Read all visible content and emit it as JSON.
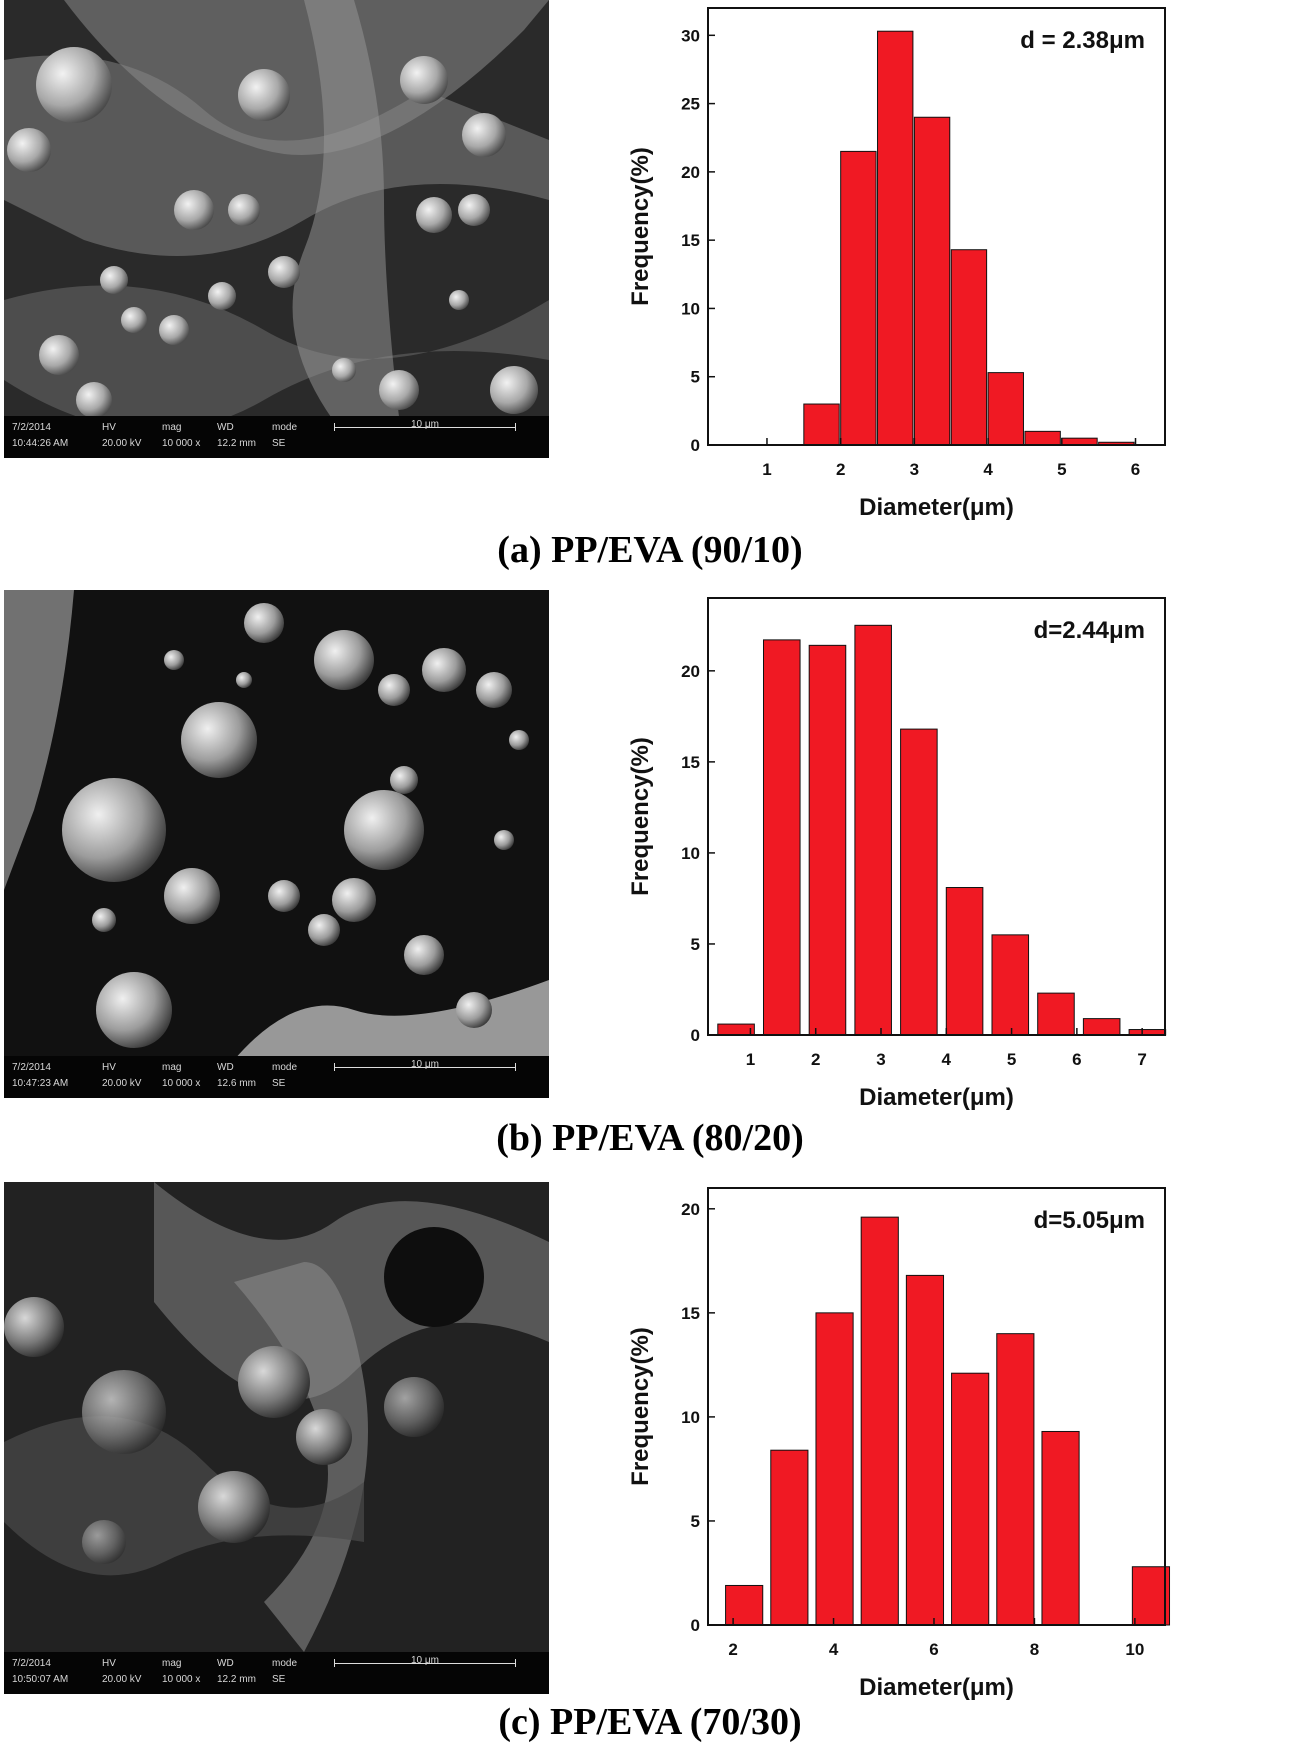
{
  "panels": [
    {
      "caption": "(a) PP/EVA (90/10)",
      "sem": {
        "row1": [
          "7/2/2014",
          "HV",
          "mag",
          "WD",
          "mode"
        ],
        "row2": [
          "10:44:26 AM",
          "20.00 kV",
          "10 000 x",
          "12.2 mm",
          "SE"
        ],
        "scale_label": "10 μm"
      }
    },
    {
      "caption": "(b) PP/EVA (80/20)",
      "sem": {
        "row1": [
          "7/2/2014",
          "HV",
          "mag",
          "WD",
          "mode"
        ],
        "row2": [
          "10:47:23 AM",
          "20.00 kV",
          "10 000 x",
          "12.6 mm",
          "SE"
        ],
        "scale_label": "10 μm"
      }
    },
    {
      "caption": "(c) PP/EVA (70/30)",
      "sem": {
        "row1": [
          "7/2/2014",
          "HV",
          "mag",
          "WD",
          "mode"
        ],
        "row2": [
          "10:50:07 AM",
          "20.00 kV",
          "10 000 x",
          "12.2 mm",
          "SE"
        ],
        "scale_label": "10 μm"
      }
    }
  ],
  "chart_data": [
    {
      "type": "bar",
      "annotation": "d = 2.38μm",
      "xlabel": "Diameter(μm)",
      "ylabel": "Frequency(%)",
      "xlim": [
        0.2,
        6.4
      ],
      "ylim": [
        0,
        32
      ],
      "xticks": [
        1,
        2,
        3,
        4,
        5,
        6
      ],
      "yticks": [
        0,
        5,
        10,
        15,
        20,
        25,
        30
      ],
      "bar_width": 0.48,
      "bar_color": "#f01923",
      "x": [
        1.0,
        1.5,
        2.0,
        2.5,
        3.0,
        3.5,
        4.0,
        4.5,
        5.0,
        5.5
      ],
      "values": [
        0,
        3.0,
        21.5,
        30.3,
        24.0,
        14.3,
        5.3,
        1.0,
        0.5,
        0.2
      ]
    },
    {
      "type": "bar",
      "annotation": "d=2.44μm",
      "xlabel": "Diameter(μm)",
      "ylabel": "Frequency(%)",
      "xlim": [
        0.35,
        7.35
      ],
      "ylim": [
        0,
        24
      ],
      "xticks": [
        1,
        2,
        3,
        4,
        5,
        6,
        7
      ],
      "yticks": [
        0,
        5,
        10,
        15,
        20
      ],
      "bar_width": 0.56,
      "bar_color": "#f01923",
      "x": [
        0.5,
        1.2,
        1.9,
        2.6,
        3.3,
        4.0,
        4.7,
        5.4,
        6.1,
        6.8
      ],
      "values": [
        0.6,
        21.7,
        21.4,
        22.5,
        16.8,
        8.1,
        5.5,
        2.3,
        0.9,
        0.3
      ]
    },
    {
      "type": "bar",
      "annotation": "d=5.05μm",
      "xlabel": "Diameter(μm)",
      "ylabel": "Frequency(%)",
      "xlim": [
        1.5,
        10.6
      ],
      "ylim": [
        0,
        21
      ],
      "xticks": [
        2,
        4,
        6,
        8,
        10
      ],
      "yticks": [
        0,
        5,
        10,
        15,
        20
      ],
      "bar_width": 0.74,
      "bar_color": "#f01923",
      "x": [
        1.85,
        2.75,
        3.65,
        4.55,
        5.45,
        6.35,
        7.25,
        8.15,
        9.05,
        9.95
      ],
      "values": [
        1.9,
        8.4,
        15.0,
        19.6,
        16.8,
        12.1,
        14.0,
        9.3,
        0,
        2.8
      ]
    }
  ]
}
